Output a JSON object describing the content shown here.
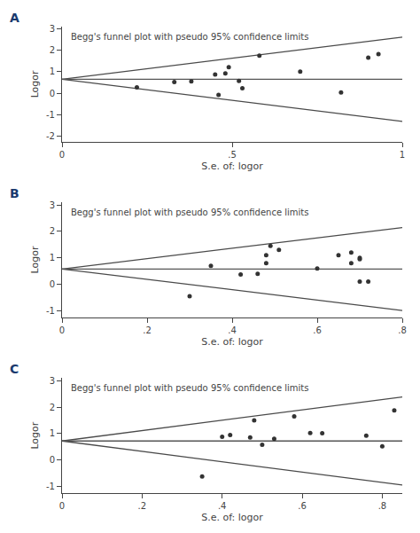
{
  "chart_data": [
    {
      "type": "scatter",
      "title": "Begg's funnel plot with pseudo 95% confidence limits",
      "annotations": [
        "A"
      ],
      "x_label": "S.e. of: logor",
      "y_label": "Logor",
      "xlim": [
        0,
        1.0
      ],
      "ylim": [
        -2.25,
        3.1
      ],
      "xticks": [
        0,
        {
          "value": 0.5,
          "label": ".5"
        },
        1
      ],
      "yticks": [
        -2,
        -1,
        0,
        1,
        2,
        3
      ],
      "grid": false,
      "series": [
        {
          "type": "line",
          "color": "#4a4a4a",
          "x": [
            0,
            1.0
          ],
          "values": [
            0.65,
            2.61
          ]
        },
        {
          "type": "line",
          "color": "#4a4a4a",
          "x": [
            0,
            1.0
          ],
          "values": [
            0.65,
            -1.31
          ]
        },
        {
          "type": "line",
          "color": "#555555",
          "x": [
            0,
            1.0
          ],
          "values": [
            0.65,
            0.65
          ]
        },
        {
          "type": "scatter",
          "color": "#333333",
          "x": [
            0.22,
            0.33,
            0.38,
            0.45,
            0.46,
            0.48,
            0.49,
            0.52,
            0.53,
            0.58,
            0.7,
            0.82,
            0.9,
            0.93
          ],
          "values": [
            0.28,
            0.52,
            0.55,
            0.87,
            -0.07,
            0.92,
            1.21,
            0.57,
            0.23,
            1.75,
            1.01,
            0.04,
            1.66,
            1.82
          ]
        }
      ]
    },
    {
      "type": "scatter",
      "title": "Begg's funnel plot with pseudo 95% confidence limits",
      "annotations": [
        "B"
      ],
      "x_label": "S.e. of: logor",
      "y_label": "Logor",
      "xlim": [
        0,
        0.8
      ],
      "ylim": [
        -1.25,
        3.1
      ],
      "xticks": [
        0,
        {
          "value": 0.2,
          "label": ".2"
        },
        {
          "value": 0.4,
          "label": ".4"
        },
        {
          "value": 0.6,
          "label": ".6"
        },
        {
          "value": 0.8,
          "label": ".8"
        }
      ],
      "yticks": [
        -1,
        0,
        1,
        2,
        3
      ],
      "grid": false,
      "series": [
        {
          "type": "line",
          "color": "#4a4a4a",
          "x": [
            0,
            0.8
          ],
          "values": [
            0.58,
            2.148
          ]
        },
        {
          "type": "line",
          "color": "#4a4a4a",
          "x": [
            0,
            0.8
          ],
          "values": [
            0.58,
            -0.988
          ]
        },
        {
          "type": "line",
          "color": "#555555",
          "x": [
            0,
            0.8
          ],
          "values": [
            0.58,
            0.58
          ]
        },
        {
          "type": "scatter",
          "color": "#333333",
          "x": [
            0.3,
            0.35,
            0.42,
            0.46,
            0.48,
            0.48,
            0.49,
            0.51,
            0.6,
            0.65,
            0.68,
            0.68,
            0.7,
            0.7,
            0.7,
            0.72
          ],
          "values": [
            -0.45,
            0.7,
            0.37,
            0.4,
            0.8,
            1.1,
            1.45,
            1.3,
            0.6,
            1.1,
            0.8,
            1.2,
            1.0,
            0.95,
            0.1,
            0.1
          ]
        }
      ]
    },
    {
      "type": "scatter",
      "title": "Begg's funnel plot with pseudo 95% confidence limits",
      "annotations": [
        "C"
      ],
      "x_label": "S.e. of: logor",
      "y_label": "Logor",
      "xlim": [
        0,
        0.85
      ],
      "ylim": [
        -1.25,
        3.1
      ],
      "xticks": [
        0,
        {
          "value": 0.2,
          "label": ".2"
        },
        {
          "value": 0.4,
          "label": ".4"
        },
        {
          "value": 0.6,
          "label": ".6"
        },
        {
          "value": 0.8,
          "label": ".8"
        }
      ],
      "yticks": [
        -1,
        0,
        1,
        2,
        3
      ],
      "grid": false,
      "series": [
        {
          "type": "line",
          "color": "#4a4a4a",
          "x": [
            0,
            0.85
          ],
          "values": [
            0.72,
            2.386
          ]
        },
        {
          "type": "line",
          "color": "#4a4a4a",
          "x": [
            0,
            0.85
          ],
          "values": [
            0.72,
            -0.946
          ]
        },
        {
          "type": "line",
          "color": "#555555",
          "x": [
            0,
            0.85
          ],
          "values": [
            0.72,
            0.72
          ]
        },
        {
          "type": "scatter",
          "color": "#333333",
          "x": [
            0.35,
            0.4,
            0.42,
            0.47,
            0.48,
            0.5,
            0.53,
            0.58,
            0.62,
            0.65,
            0.76,
            0.8,
            0.83
          ],
          "values": [
            -0.62,
            0.88,
            0.95,
            0.85,
            1.5,
            0.58,
            0.8,
            1.65,
            1.02,
            1.01,
            0.92,
            0.52,
            1.88
          ]
        }
      ]
    }
  ]
}
